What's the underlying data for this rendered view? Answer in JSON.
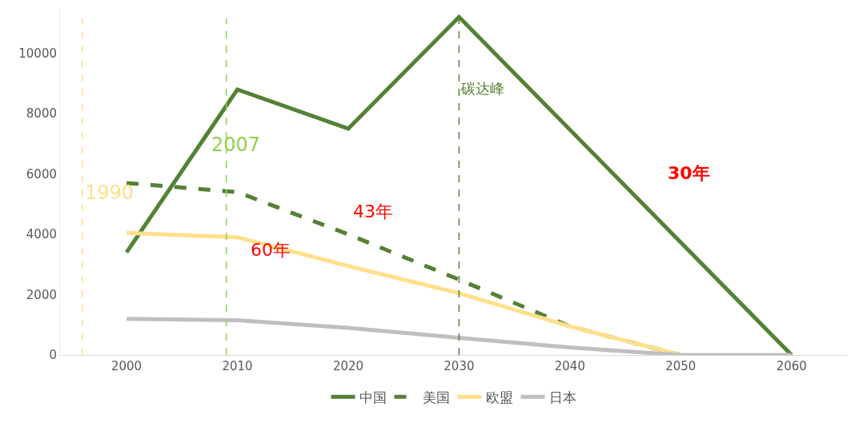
{
  "chart_data": {
    "type": "line",
    "x": [
      2000,
      2010,
      2020,
      2030,
      2040,
      2050,
      2060
    ],
    "series": [
      {
        "name": "中国",
        "color": "#548235",
        "line_style": "solid",
        "x": [
          2000,
          2010,
          2020,
          2030,
          2060
        ],
        "values": [
          3400,
          8800,
          7500,
          11200,
          0
        ]
      },
      {
        "name": "美国",
        "color": "#548235",
        "line_style": "dashed",
        "values": [
          5700,
          5400,
          4000,
          2500,
          950,
          0,
          null
        ]
      },
      {
        "name": "欧盟",
        "color": "#ffe08a",
        "line_style": "solid",
        "values": [
          4050,
          3900,
          2950,
          2050,
          950,
          0,
          null
        ]
      },
      {
        "name": "日本",
        "color": "#bfbfbf",
        "line_style": "solid",
        "values": [
          1200,
          1150,
          900,
          570,
          250,
          0,
          0
        ]
      }
    ],
    "xlim": [
      1994,
      2065
    ],
    "xticks": [
      2000,
      2010,
      2020,
      2030,
      2040,
      2050,
      2060
    ],
    "ylim": [
      0,
      11500
    ],
    "yticks": [
      0,
      2000,
      4000,
      6000,
      8000,
      10000
    ],
    "grid": false,
    "legend": "bottom",
    "marker": "none",
    "ref_lines": [
      {
        "axis": "x",
        "value": 1996,
        "color": "#ffe08a",
        "line_style": "dashed"
      },
      {
        "axis": "x",
        "value": 2009,
        "color": "#92d050",
        "line_style": "dashed"
      },
      {
        "axis": "x",
        "value": 2030,
        "label": "碳达峰",
        "color": "#548235",
        "line_style": "dashed"
      }
    ],
    "annotations": [
      "1990",
      "2007",
      "43年",
      "60年",
      "30年"
    ]
  }
}
